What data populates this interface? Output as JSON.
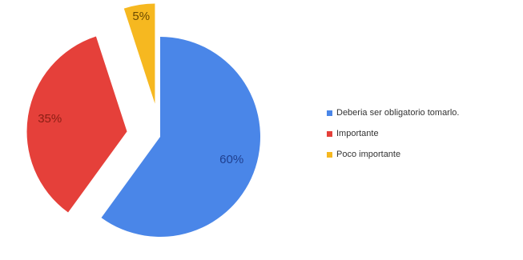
{
  "chart_data": {
    "type": "pie",
    "title": "",
    "slices": [
      {
        "label": "Deberia ser obligatorio tomarlo.",
        "value": 60,
        "value_label": "60%",
        "color": "#4a86e8",
        "exploded": false
      },
      {
        "label": "Importante",
        "value": 35,
        "value_label": "35%",
        "color": "#e5403a",
        "exploded": true
      },
      {
        "label": "Poco importante",
        "value": 5,
        "value_label": "5%",
        "color": "#f6b820",
        "exploded": true
      }
    ],
    "legend_position": "right"
  }
}
